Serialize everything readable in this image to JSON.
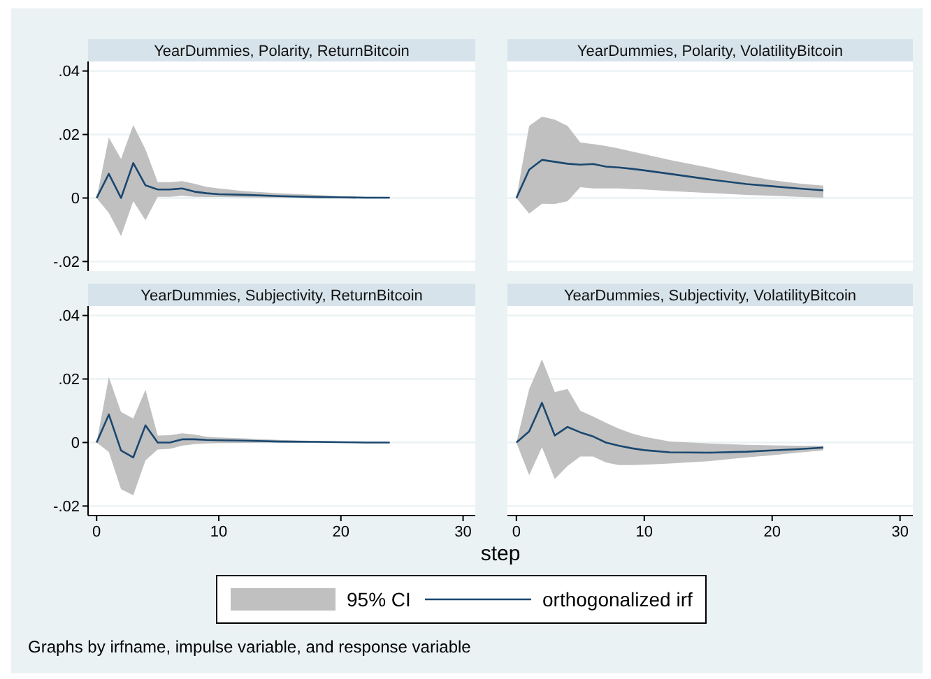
{
  "chart_data": [
    {
      "type": "line",
      "title": "YearDummies, Polarity, ReturnBitcoin",
      "x": [
        0,
        1,
        2,
        3,
        4,
        5,
        6,
        7,
        8,
        9,
        10,
        12,
        15,
        18,
        20,
        22,
        24
      ],
      "xlim": [
        -0.7,
        31
      ],
      "xticks": [
        0,
        10,
        20,
        30
      ],
      "ylim": [
        -0.023,
        0.043
      ],
      "yticks": [
        {
          "value": -0.02,
          "label": "-.02"
        },
        {
          "value": 0,
          "label": "0"
        },
        {
          "value": 0.02,
          "label": ".02"
        },
        {
          "value": 0.04,
          "label": ".04"
        }
      ],
      "grid": "y",
      "tick_labels": "y",
      "legend": "bottom",
      "annotations": [
        "95% CI",
        "Graphs by irfname, impulse variable, and response variable"
      ],
      "series": [
        {
          "name": "orthogonalized irf",
          "color": "#1a476f",
          "values": [
            0,
            0.0076,
            0,
            0.011,
            0.004,
            0.0027,
            0.0027,
            0.003,
            0.002,
            0.0015,
            0.0012,
            0.001,
            0.0006,
            0.0003,
            0.0002,
            0.0001,
            0.0001
          ],
          "lower": [
            0,
            -0.0047,
            -0.012,
            -0.001,
            -0.007,
            0.0004,
            0.0004,
            0.0007,
            0.0004,
            0.0003,
            0.0003,
            0.0002,
            0.0001,
            0.0001,
            0,
            0,
            0
          ],
          "upper": [
            0,
            0.019,
            0.0123,
            0.023,
            0.0153,
            0.005,
            0.005,
            0.0053,
            0.0045,
            0.0035,
            0.003,
            0.0022,
            0.0015,
            0.001,
            0.0006,
            0.0004,
            0.0003
          ]
        }
      ]
    },
    {
      "type": "line",
      "title": "YearDummies, Polarity, VolatilityBitcoin",
      "x": [
        0,
        1,
        2,
        3,
        4,
        5,
        6,
        7,
        8,
        9,
        10,
        12,
        15,
        18,
        20,
        22,
        24
      ],
      "xlim": [
        -0.7,
        31
      ],
      "xticks": [
        0,
        10,
        20,
        30
      ],
      "ylim": [
        -0.023,
        0.043
      ],
      "yticks": [
        -0.02,
        0,
        0.02,
        0.04
      ],
      "grid": "y",
      "tick_labels": false,
      "series": [
        {
          "color": "#1a476f",
          "values": [
            0,
            0.0089,
            0.012,
            0.0114,
            0.0108,
            0.0105,
            0.0107,
            0.0099,
            0.0096,
            0.0092,
            0.0087,
            0.0076,
            0.0059,
            0.0044,
            0.0037,
            0.003,
            0.0024
          ],
          "lower": [
            0,
            -0.0049,
            -0.0018,
            -0.0019,
            -0.001,
            0.0034,
            0.003,
            0.003,
            0.003,
            0.0028,
            0.0027,
            0.0022,
            0.0016,
            0.001,
            0.0007,
            0.0004,
            0.0001
          ],
          "upper": [
            0,
            0.0227,
            0.0256,
            0.0247,
            0.0227,
            0.0175,
            0.017,
            0.0164,
            0.0156,
            0.0147,
            0.0138,
            0.012,
            0.0096,
            0.0071,
            0.0056,
            0.0046,
            0.0039
          ]
        }
      ]
    },
    {
      "type": "line",
      "title": "YearDummies, Subjectivity, ReturnBitcoin",
      "xlabel": "step",
      "x": [
        0,
        1,
        2,
        3,
        4,
        5,
        6,
        7,
        8,
        9,
        10,
        12,
        15,
        18,
        20,
        22,
        24
      ],
      "xlim": [
        -0.7,
        31
      ],
      "xticks": [
        0,
        10,
        20,
        30
      ],
      "ylim": [
        -0.023,
        0.043
      ],
      "yticks": [
        {
          "value": -0.02,
          "label": "-.02"
        },
        {
          "value": 0,
          "label": "0"
        },
        {
          "value": 0.02,
          "label": ".02"
        },
        {
          "value": 0.04,
          "label": ".04"
        }
      ],
      "grid": "y",
      "series": [
        {
          "color": "#1a476f",
          "values": [
            0,
            0.0088,
            -0.0025,
            -0.0047,
            0.0054,
            0,
            0,
            0.001,
            0.001,
            0.0008,
            0.0007,
            0.0006,
            0.0003,
            0.0002,
            0.0001,
            0,
            0
          ],
          "lower": [
            0,
            -0.003,
            -0.0147,
            -0.0166,
            -0.0056,
            -0.0022,
            -0.002,
            -0.001,
            -0.0005,
            -0.0003,
            -0.0002,
            -0.0001,
            0,
            0,
            0,
            0,
            0
          ],
          "upper": [
            0,
            0.0206,
            0.0096,
            0.0076,
            0.0166,
            0.0022,
            0.0023,
            0.0029,
            0.0025,
            0.0018,
            0.0016,
            0.0013,
            0.0008,
            0.0005,
            0.0003,
            0.0002,
            0.0001
          ]
        }
      ]
    },
    {
      "type": "line",
      "title": "YearDummies, Subjectivity, VolatilityBitcoin",
      "x": [
        0,
        1,
        2,
        3,
        4,
        5,
        6,
        7,
        8,
        9,
        10,
        12,
        15,
        18,
        20,
        22,
        24
      ],
      "xlim": [
        -0.7,
        31
      ],
      "xticks": [
        0,
        10,
        20,
        30
      ],
      "ylim": [
        -0.023,
        0.043
      ],
      "yticks": [
        -0.02,
        0,
        0.02,
        0.04
      ],
      "grid": "y",
      "tick_labels": "x",
      "series": [
        {
          "color": "#1a476f",
          "values": [
            0,
            0.0035,
            0.0125,
            0.0022,
            0.0049,
            0.0032,
            0.0019,
            0,
            -0.001,
            -0.0018,
            -0.0024,
            -0.0031,
            -0.0032,
            -0.0029,
            -0.0025,
            -0.0021,
            -0.0016
          ],
          "lower": [
            0,
            -0.0103,
            -0.0015,
            -0.0115,
            -0.0074,
            -0.0044,
            -0.0044,
            -0.0063,
            -0.0071,
            -0.0071,
            -0.007,
            -0.0066,
            -0.0059,
            -0.0047,
            -0.004,
            -0.0032,
            -0.0025
          ],
          "upper": [
            0,
            0.0168,
            0.0262,
            0.0159,
            0.0169,
            0.01,
            0.0082,
            0.0062,
            0.0044,
            0.0029,
            0.0018,
            0.0003,
            -0.0003,
            -0.0007,
            -0.0009,
            -0.001,
            -0.001
          ]
        }
      ]
    }
  ]
}
